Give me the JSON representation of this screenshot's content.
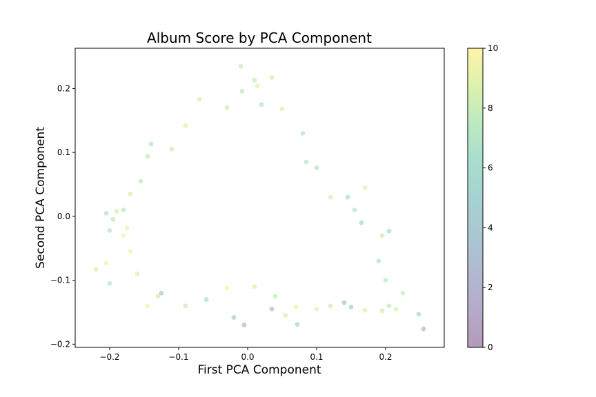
{
  "chart_data": {
    "type": "scatter",
    "title": "Album Score by PCA Component",
    "xlabel": "First PCA Component",
    "ylabel": "Second PCA Component",
    "xlim": [
      -0.25,
      0.285
    ],
    "ylim": [
      -0.205,
      0.263
    ],
    "xticks": [
      -0.2,
      -0.1,
      0.0,
      0.1,
      0.2
    ],
    "xtick_labels": [
      "−0.2",
      "−0.1",
      "0.0",
      "0.1",
      "0.2"
    ],
    "yticks": [
      -0.2,
      -0.1,
      0.0,
      0.1,
      0.2
    ],
    "ytick_labels": [
      "−0.2",
      "−0.1",
      "0.0",
      "0.1",
      "0.2"
    ],
    "grid": false,
    "colormap": "viridis",
    "point_alpha": 0.3,
    "colorbar": {
      "min": 0,
      "max": 10,
      "ticks": [
        0,
        2,
        4,
        6,
        8,
        10
      ],
      "tick_labels": [
        "0",
        "2",
        "4",
        "6",
        "8",
        "10"
      ]
    },
    "points": [
      {
        "x": -0.01,
        "y": 0.235,
        "score": 8.2
      },
      {
        "x": 0.01,
        "y": 0.213,
        "score": 7.8
      },
      {
        "x": 0.035,
        "y": 0.217,
        "score": 8.4
      },
      {
        "x": -0.008,
        "y": 0.196,
        "score": 7.5
      },
      {
        "x": 0.014,
        "y": 0.204,
        "score": 9.1
      },
      {
        "x": 0.05,
        "y": 0.168,
        "score": 8.8
      },
      {
        "x": -0.07,
        "y": 0.183,
        "score": 8.9
      },
      {
        "x": -0.09,
        "y": 0.142,
        "score": 9.0
      },
      {
        "x": -0.03,
        "y": 0.17,
        "score": 8.0
      },
      {
        "x": 0.02,
        "y": 0.175,
        "score": 7.2
      },
      {
        "x": 0.08,
        "y": 0.13,
        "score": 7.0
      },
      {
        "x": -0.14,
        "y": 0.113,
        "score": 6.8
      },
      {
        "x": -0.145,
        "y": 0.094,
        "score": 7.6
      },
      {
        "x": -0.11,
        "y": 0.105,
        "score": 8.1
      },
      {
        "x": 0.085,
        "y": 0.085,
        "score": 7.3
      },
      {
        "x": 0.1,
        "y": 0.076,
        "score": 6.9
      },
      {
        "x": -0.155,
        "y": 0.055,
        "score": 7.7
      },
      {
        "x": -0.17,
        "y": 0.035,
        "score": 8.5
      },
      {
        "x": -0.18,
        "y": 0.01,
        "score": 7.4
      },
      {
        "x": -0.205,
        "y": 0.005,
        "score": 6.9
      },
      {
        "x": -0.195,
        "y": -0.005,
        "score": 7.5
      },
      {
        "x": -0.2,
        "y": -0.022,
        "score": 7.1
      },
      {
        "x": -0.19,
        "y": 0.008,
        "score": 8.7
      },
      {
        "x": -0.175,
        "y": -0.018,
        "score": 9.2
      },
      {
        "x": -0.18,
        "y": -0.03,
        "score": 9.4
      },
      {
        "x": -0.17,
        "y": -0.055,
        "score": 9.6
      },
      {
        "x": -0.22,
        "y": -0.083,
        "score": 8.6
      },
      {
        "x": -0.205,
        "y": -0.073,
        "score": 9.3
      },
      {
        "x": -0.2,
        "y": -0.105,
        "score": 7.2
      },
      {
        "x": -0.16,
        "y": -0.09,
        "score": 8.8
      },
      {
        "x": -0.145,
        "y": -0.14,
        "score": 9.5
      },
      {
        "x": -0.13,
        "y": -0.125,
        "score": 8.2
      },
      {
        "x": -0.125,
        "y": -0.12,
        "score": 4.6
      },
      {
        "x": -0.09,
        "y": -0.14,
        "score": 7.9
      },
      {
        "x": -0.06,
        "y": -0.13,
        "score": 6.4
      },
      {
        "x": -0.02,
        "y": -0.158,
        "score": 5.0
      },
      {
        "x": -0.005,
        "y": -0.17,
        "score": 2.6
      },
      {
        "x": 0.035,
        "y": -0.145,
        "score": 2.8
      },
      {
        "x": 0.055,
        "y": -0.155,
        "score": 8.6
      },
      {
        "x": 0.07,
        "y": -0.142,
        "score": 9.5
      },
      {
        "x": 0.072,
        "y": -0.169,
        "score": 5.2
      },
      {
        "x": 0.1,
        "y": -0.145,
        "score": 9.1
      },
      {
        "x": 0.12,
        "y": -0.14,
        "score": 8.0
      },
      {
        "x": 0.14,
        "y": -0.135,
        "score": 3.5
      },
      {
        "x": 0.15,
        "y": -0.142,
        "score": 5.4
      },
      {
        "x": 0.17,
        "y": -0.147,
        "score": 8.7
      },
      {
        "x": 0.195,
        "y": -0.148,
        "score": 8.3
      },
      {
        "x": 0.205,
        "y": -0.14,
        "score": 7.6
      },
      {
        "x": 0.215,
        "y": -0.145,
        "score": 8.9
      },
      {
        "x": 0.225,
        "y": -0.12,
        "score": 7.8
      },
      {
        "x": 0.248,
        "y": -0.153,
        "score": 5.6
      },
      {
        "x": 0.255,
        "y": -0.176,
        "score": 3.0
      },
      {
        "x": 0.2,
        "y": -0.1,
        "score": 7.4
      },
      {
        "x": 0.19,
        "y": -0.07,
        "score": 7.0
      },
      {
        "x": 0.205,
        "y": -0.023,
        "score": 6.2
      },
      {
        "x": 0.195,
        "y": -0.03,
        "score": 8.1
      },
      {
        "x": 0.17,
        "y": 0.045,
        "score": 9.0
      },
      {
        "x": 0.145,
        "y": 0.03,
        "score": 6.6
      },
      {
        "x": 0.155,
        "y": 0.01,
        "score": 7.2
      },
      {
        "x": 0.165,
        "y": -0.01,
        "score": 5.9
      },
      {
        "x": 0.12,
        "y": 0.03,
        "score": 8.4
      },
      {
        "x": 0.01,
        "y": -0.11,
        "score": 8.9
      },
      {
        "x": 0.04,
        "y": -0.125,
        "score": 7.7
      },
      {
        "x": -0.03,
        "y": -0.112,
        "score": 9.7
      }
    ]
  }
}
